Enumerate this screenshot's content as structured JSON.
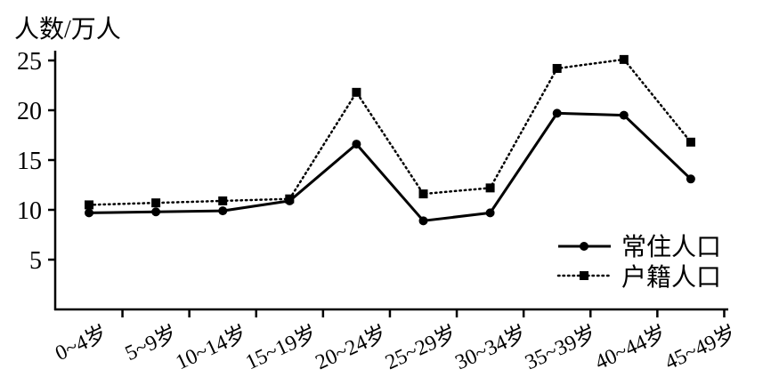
{
  "chart_data": {
    "type": "line",
    "title": "",
    "ylabel": "人数/万人",
    "xlabel": "",
    "ylim": [
      0,
      26
    ],
    "yticks": [
      "5",
      "10",
      "15",
      "20",
      "25"
    ],
    "ytick_values": [
      5,
      10,
      15,
      20,
      25
    ],
    "categories": [
      "0~4岁",
      "5~9岁",
      "10~14岁",
      "15~19岁",
      "20~24岁",
      "25~29岁",
      "30~34岁",
      "35~39岁",
      "40~44岁",
      "45~49岁"
    ],
    "legend_position": "bottom-right",
    "grid": false,
    "series": [
      {
        "name": "常住人口",
        "line": "solid",
        "marker": "circle",
        "values": [
          9.7,
          9.8,
          9.9,
          10.9,
          16.6,
          8.9,
          9.7,
          19.7,
          19.5,
          13.1
        ]
      },
      {
        "name": "户籍人口",
        "line": "dotted",
        "marker": "square",
        "values": [
          10.5,
          10.7,
          10.9,
          11.1,
          21.8,
          11.6,
          12.2,
          24.2,
          25.1,
          16.8
        ]
      }
    ]
  }
}
